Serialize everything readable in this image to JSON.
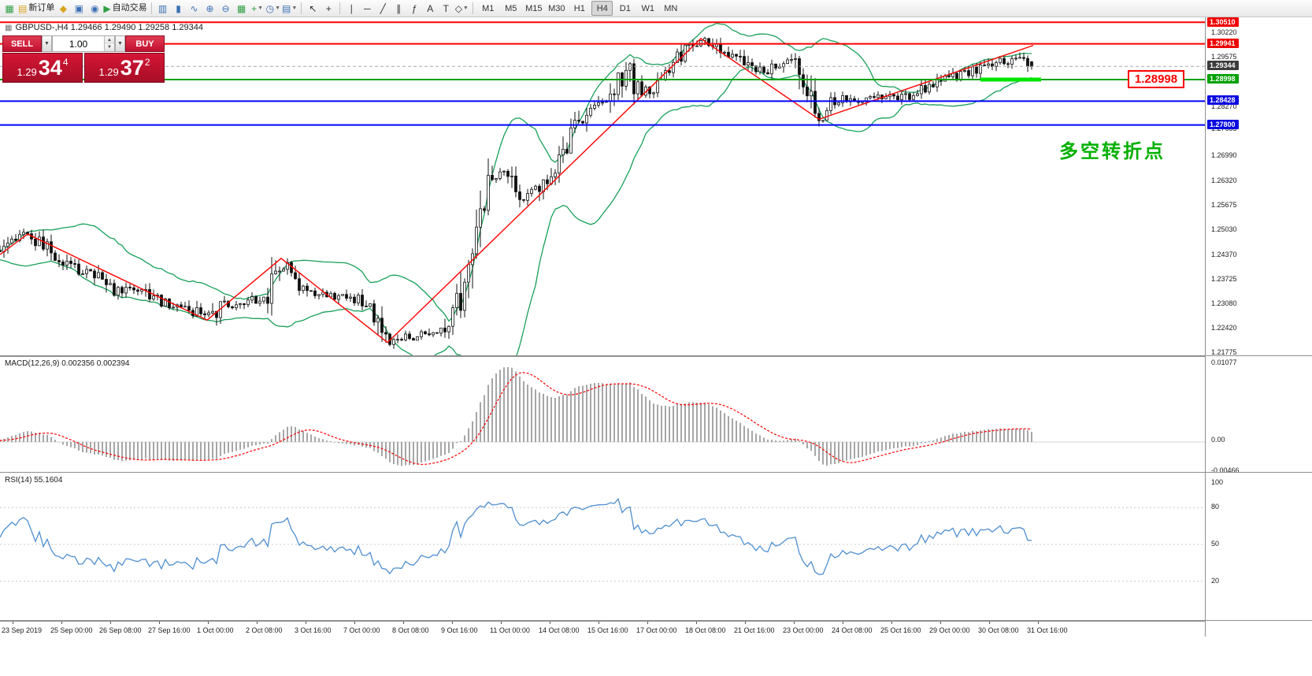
{
  "toolbar": {
    "icons": [
      {
        "name": "new-chart-icon",
        "glyph": "▦",
        "color": "#2f9e44"
      },
      {
        "name": "new-order-button",
        "glyph": "▤",
        "color": "#d9a520",
        "label": "新订单"
      },
      {
        "name": "market-watch-icon",
        "glyph": "◆",
        "color": "#d9a520"
      },
      {
        "name": "data-window-icon",
        "glyph": "▣",
        "color": "#3b6fb5"
      },
      {
        "name": "navigator-icon",
        "glyph": "◉",
        "color": "#3b6fb5"
      },
      {
        "name": "autotrade-button",
        "glyph": "▶",
        "color": "#2f9e44",
        "label": "自动交易"
      },
      {
        "sep": true
      },
      {
        "name": "bar-chart-icon",
        "glyph": "▥",
        "color": "#3b6fb5"
      },
      {
        "name": "candlestick-chart-icon",
        "glyph": "▮",
        "color": "#3b6fb5"
      },
      {
        "name": "line-chart-icon",
        "glyph": "∿",
        "color": "#3b6fb5"
      },
      {
        "name": "zoom-in-icon",
        "glyph": "⊕",
        "color": "#3b6fb5"
      },
      {
        "name": "zoom-out-icon",
        "glyph": "⊖",
        "color": "#3b6fb5"
      },
      {
        "name": "tile-windows-icon",
        "glyph": "▦",
        "color": "#2f9e44"
      },
      {
        "name": "indicators-icon",
        "glyph": "+",
        "color": "#2f9e44",
        "dd": true
      },
      {
        "name": "periods-icon",
        "glyph": "◷",
        "color": "#3b6fb5",
        "dd": true
      },
      {
        "name": "templates-icon",
        "glyph": "▤",
        "color": "#3b6fb5",
        "dd": true
      },
      {
        "sep": true
      },
      {
        "name": "cursor-icon",
        "glyph": "↖",
        "color": "#333333"
      },
      {
        "name": "crosshair-icon",
        "glyph": "+",
        "color": "#333333"
      },
      {
        "sep": true
      },
      {
        "name": "vline-tool-icon",
        "glyph": "∣",
        "color": "#333333"
      },
      {
        "name": "hline-tool-icon",
        "glyph": "─",
        "color": "#333333"
      },
      {
        "name": "trendline-tool-icon",
        "glyph": "╱",
        "color": "#333333"
      },
      {
        "name": "channel-tool-icon",
        "glyph": "∥",
        "color": "#333333"
      },
      {
        "name": "fibonacci-tool-icon",
        "glyph": "ƒ",
        "color": "#333333"
      },
      {
        "name": "text-tool-icon",
        "glyph": "A",
        "color": "#333333"
      },
      {
        "name": "label-tool-icon",
        "glyph": "T",
        "color": "#333333"
      },
      {
        "name": "shapes-tool-icon",
        "glyph": "◇",
        "color": "#333333",
        "dd": true
      }
    ],
    "timeframes": [
      "M1",
      "M5",
      "M15",
      "M30",
      "H1",
      "H4",
      "D1",
      "W1",
      "MN"
    ],
    "active_timeframe": "H4"
  },
  "chart": {
    "title": "GBPUSD-,H4  1.29466 1.29490 1.29258 1.29344",
    "order_panel": {
      "sell_label": "SELL",
      "buy_label": "BUY",
      "volume": "1.00",
      "bid_prefix": "1.29",
      "bid_big": "34",
      "bid_sup": "4",
      "ask_prefix": "1.29",
      "ask_big": "37",
      "ask_sup": "2"
    },
    "annotations": {
      "price_box": "1.28998",
      "note_text": "多空转折点"
    },
    "hlines": [
      {
        "price": 1.3051,
        "color": "#ff0000"
      },
      {
        "price": 1.29941,
        "color": "#ff0000"
      },
      {
        "price": 1.28998,
        "color": "#00a000"
      },
      {
        "price": 1.28428,
        "color": "#0000ff"
      },
      {
        "price": 1.278,
        "color": "#0000ff"
      }
    ],
    "highlight_segment": {
      "price": 1.28998,
      "color": "#00e600"
    },
    "price_axis": {
      "plain_labels": [
        "1.30220",
        "1.29575",
        "1.28930",
        "1.28270",
        "1.27685",
        "1.26990",
        "1.26320",
        "1.25675",
        "1.25030",
        "1.24370",
        "1.23725",
        "1.23080",
        "1.22420",
        "1.21775"
      ],
      "badges": [
        {
          "text": "1.30510",
          "bg": "#f00000"
        },
        {
          "text": "1.29941",
          "bg": "#f00000"
        },
        {
          "text": "1.29344",
          "bg": "#3c3c3c"
        },
        {
          "text": "1.28998",
          "bg": "#00a000"
        },
        {
          "text": "1.28428",
          "bg": "#0a0ae0"
        },
        {
          "text": "1.27800",
          "bg": "#0a0ae0"
        }
      ]
    },
    "chart_data": {
      "type": "candlestick",
      "symbol": "GBPUSD",
      "timeframe": "H4",
      "current_bar": {
        "open": 1.29466,
        "high": 1.2949,
        "low": 1.29258,
        "close": 1.29344
      },
      "bid": 1.29344,
      "ask": 1.29372,
      "price_top": 1.3064,
      "price_bottom": 1.217,
      "bollinger": {
        "period": 20,
        "deviation": 2
      },
      "price_path_keypoints": [
        [
          -120,
          1.243
        ],
        [
          0,
          1.244
        ],
        [
          15,
          1.2468
        ],
        [
          35,
          1.2492
        ],
        [
          60,
          1.2455
        ],
        [
          90,
          1.2405
        ],
        [
          120,
          1.2385
        ],
        [
          150,
          1.234
        ],
        [
          180,
          1.2348
        ],
        [
          205,
          1.2312
        ],
        [
          235,
          1.23
        ],
        [
          263,
          1.2268
        ],
        [
          285,
          1.2305
        ],
        [
          310,
          1.2312
        ],
        [
          340,
          1.233
        ],
        [
          357,
          1.242
        ],
        [
          375,
          1.2362
        ],
        [
          400,
          1.233
        ],
        [
          430,
          1.2328
        ],
        [
          455,
          1.2318
        ],
        [
          470,
          1.23
        ],
        [
          482,
          1.2245
        ],
        [
          492,
          1.221
        ],
        [
          510,
          1.2218
        ],
        [
          540,
          1.2226
        ],
        [
          565,
          1.2238
        ],
        [
          580,
          1.23
        ],
        [
          595,
          1.242
        ],
        [
          612,
          1.256
        ],
        [
          628,
          1.2655
        ],
        [
          645,
          1.264
        ],
        [
          662,
          1.2585
        ],
        [
          680,
          1.261
        ],
        [
          700,
          1.2655
        ],
        [
          715,
          1.27
        ],
        [
          730,
          1.278
        ],
        [
          750,
          1.2825
        ],
        [
          770,
          1.285
        ],
        [
          790,
          1.291
        ],
        [
          798,
          1.295
        ],
        [
          808,
          1.288
        ],
        [
          825,
          1.2862
        ],
        [
          840,
          1.2895
        ],
        [
          858,
          1.295
        ],
        [
          872,
          1.298
        ],
        [
          890,
          1.3002
        ],
        [
          905,
          1.2988
        ],
        [
          920,
          1.2962
        ],
        [
          938,
          1.295
        ],
        [
          955,
          1.2928
        ],
        [
          970,
          1.2922
        ],
        [
          985,
          1.294
        ],
        [
          1000,
          1.2958
        ],
        [
          1012,
          1.295
        ],
        [
          1025,
          1.288
        ],
        [
          1040,
          1.2802
        ],
        [
          1055,
          1.2838
        ],
        [
          1072,
          1.2852
        ],
        [
          1090,
          1.2845
        ],
        [
          1108,
          1.2852
        ],
        [
          1125,
          1.2858
        ],
        [
          1142,
          1.285
        ],
        [
          1158,
          1.2862
        ],
        [
          1175,
          1.288
        ],
        [
          1192,
          1.2892
        ],
        [
          1208,
          1.2902
        ],
        [
          1225,
          1.2915
        ],
        [
          1242,
          1.2928
        ],
        [
          1258,
          1.2945
        ],
        [
          1272,
          1.2952
        ],
        [
          1288,
          1.2946
        ],
        [
          1300,
          1.2952
        ],
        [
          1312,
          1.2938
        ]
      ],
      "zigzag": [
        [
          0,
          1.2438
        ],
        [
          35,
          1.2492
        ],
        [
          263,
          1.2265
        ],
        [
          357,
          1.2428
        ],
        [
          492,
          1.2206
        ],
        [
          890,
          1.3008
        ],
        [
          1040,
          1.2795
        ],
        [
          1312,
          1.299
        ]
      ]
    }
  },
  "macd": {
    "label": "MACD(12,26,9) 0.002356 0.002394",
    "axis_labels": [
      "0.01077",
      "0.00",
      "-0.00466"
    ]
  },
  "rsi": {
    "label": "RSI(14) 55.1604",
    "axis_labels": [
      "100",
      "80",
      "50",
      "20"
    ],
    "levels": [
      80,
      50,
      20
    ]
  },
  "time_axis": {
    "labels": [
      "23 Sep 2019",
      "25 Sep 00:00",
      "26 Sep 08:00",
      "27 Sep 16:00",
      "1 Oct 00:00",
      "2 Oct 08:00",
      "3 Oct 16:00",
      "7 Oct 00:00",
      "8 Oct 08:00",
      "9 Oct 16:00",
      "11 Oct 00:00",
      "14 Oct 08:00",
      "15 Oct 16:00",
      "17 Oct 00:00",
      "18 Oct 08:00",
      "21 Oct 16:00",
      "23 Oct 00:00",
      "24 Oct 08:00",
      "25 Oct 16:00",
      "29 Oct 00:00",
      "30 Oct 08:00",
      "31 Oct 16:00"
    ]
  }
}
